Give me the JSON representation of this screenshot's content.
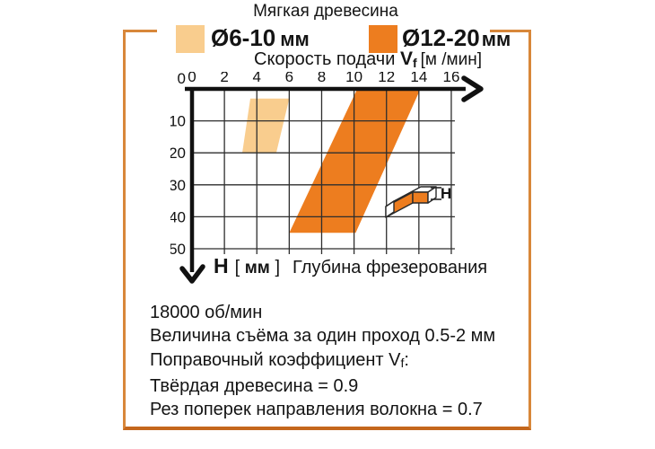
{
  "title": "Мягкая древесина",
  "legend": {
    "items": [
      {
        "label": "Ø6-10",
        "unit": "мм",
        "color": "#F9CD8E"
      },
      {
        "label": "Ø12-20",
        "unit": "мм",
        "color": "#ED7D1F"
      }
    ]
  },
  "x_axis": {
    "title_prefix": "Скорость подачи",
    "title_var": "V",
    "title_var_sub": "f",
    "title_unit": "[м /мин]"
  },
  "y_axis": {
    "var": "H",
    "bracket_open": "[",
    "unit": "мм",
    "bracket_close": "]",
    "title": "Глубина фрезерования"
  },
  "icon": {
    "depth_label": "H"
  },
  "chart_data": {
    "type": "area",
    "title": "Мягкая древесина",
    "xlabel": "Скорость подачи Vf [м/мин]",
    "ylabel": "H [мм] Глубина фрезерования",
    "xlim": [
      0,
      16
    ],
    "ylim": [
      0,
      50
    ],
    "x_ticks": [
      0,
      2,
      4,
      6,
      8,
      10,
      12,
      14,
      16
    ],
    "y_ticks": [
      0,
      10,
      20,
      30,
      40,
      50
    ],
    "y_inverted": true,
    "grid": true,
    "legend_position": "top",
    "series": [
      {
        "name": "Ø6-10 мм",
        "key": "d6-10",
        "color": "#F9CD8E",
        "region_points_xy": [
          [
            3.6,
            3
          ],
          [
            6.0,
            3
          ],
          [
            5.2,
            20
          ],
          [
            3.1,
            20
          ]
        ],
        "feed_range_m_min": [
          3,
          6
        ],
        "depth_range_mm": [
          3,
          20
        ]
      },
      {
        "name": "Ø12-20 мм",
        "key": "d12-20",
        "color": "#ED7D1F",
        "region_points_xy": [
          [
            10.2,
            0
          ],
          [
            14.1,
            0
          ],
          [
            10.1,
            45
          ],
          [
            6.0,
            45
          ]
        ],
        "feed_range_m_min": [
          6,
          14
        ],
        "depth_range_mm": [
          0,
          45
        ]
      }
    ]
  },
  "notes": {
    "line1": "18000 об/мин",
    "line2": "Величина съёма за один проход 0.5-2 мм",
    "line3_prefix": "Поправочный коэффициент",
    "line3_var": "V",
    "line3_var_sub": "f",
    "line3_colon": ":",
    "line4": "Твёрдая древесина = 0.9",
    "line5": "Рез поперек направления волокна = 0.7"
  },
  "colors": {
    "frame": "#D8873A",
    "frame_bottom": "#C4671D",
    "grid": "#2E2E2E",
    "axis": "#111111"
  }
}
